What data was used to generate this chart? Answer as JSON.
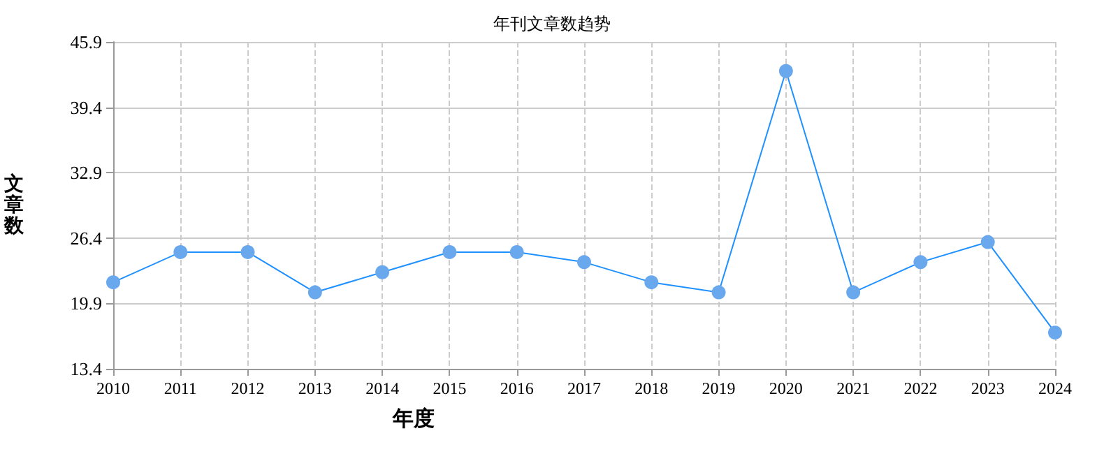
{
  "chart_data": {
    "type": "line",
    "title": "年刊文章数趋势",
    "xlabel": "年度",
    "ylabel": "文章数",
    "categories": [
      "2010",
      "2011",
      "2012",
      "2013",
      "2014",
      "2015",
      "2016",
      "2017",
      "2018",
      "2019",
      "2020",
      "2021",
      "2022",
      "2023",
      "2024"
    ],
    "series": [
      {
        "color": "#1e90ff",
        "values": [
          22,
          25,
          25,
          21,
          23,
          25,
          25,
          24,
          22,
          21,
          43,
          21,
          24,
          26,
          17
        ]
      }
    ],
    "ylim": [
      13.4,
      45.9
    ],
    "yticks": [
      13.4,
      19.9,
      26.4,
      32.9,
      39.4,
      45.9
    ],
    "grid": true,
    "marker": "circle",
    "line_style": "solid"
  }
}
